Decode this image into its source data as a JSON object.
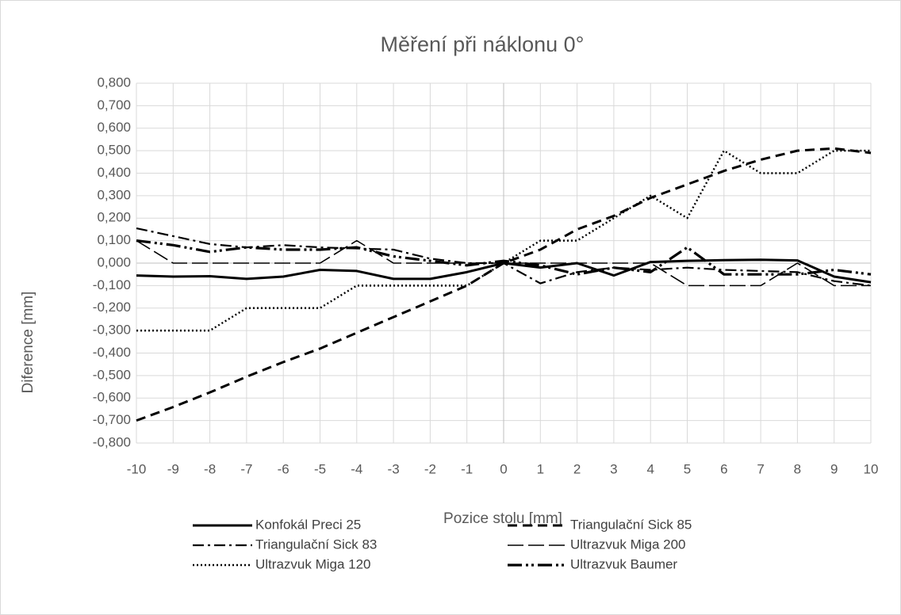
{
  "chart_data": {
    "type": "line",
    "title": "Měření při náklonu 0°",
    "x_label": "Pozice stolu [mm]",
    "y_label": "Diference [mm]",
    "x": [
      -10,
      -9,
      -8,
      -7,
      -6,
      -5,
      -4,
      -3,
      -2,
      -1,
      0,
      1,
      2,
      3,
      4,
      5,
      6,
      7,
      8,
      9,
      10
    ],
    "xlim": [
      -10,
      10
    ],
    "xticks": [
      -10,
      -9,
      -8,
      -7,
      -6,
      -5,
      -4,
      -3,
      -2,
      -1,
      0,
      1,
      2,
      3,
      4,
      5,
      6,
      7,
      8,
      9,
      10
    ],
    "ylim": [
      -0.8,
      0.8
    ],
    "yticks": [
      {
        "value": -0.8,
        "label": "-0,800"
      },
      {
        "value": -0.7,
        "label": "-0,700"
      },
      {
        "value": -0.6,
        "label": "-0,600"
      },
      {
        "value": -0.5,
        "label": "-0,500"
      },
      {
        "value": -0.4,
        "label": "-0,400"
      },
      {
        "value": -0.3,
        "label": "-0,300"
      },
      {
        "value": -0.2,
        "label": "-0,200"
      },
      {
        "value": -0.1,
        "label": "-0,100"
      },
      {
        "value": 0,
        "label": "0,000"
      },
      {
        "value": 0.1,
        "label": "0,100"
      },
      {
        "value": 0.2,
        "label": "0,200"
      },
      {
        "value": 0.3,
        "label": "0,300"
      },
      {
        "value": 0.4,
        "label": "0,400"
      },
      {
        "value": 0.5,
        "label": "0,500"
      },
      {
        "value": 0.6,
        "label": "0,600"
      },
      {
        "value": 0.7,
        "label": "0,700"
      },
      {
        "value": 0.8,
        "label": "0,800"
      }
    ],
    "grid": true,
    "legend": "bottom",
    "series": [
      {
        "name": "Konfokál  Preci 25",
        "color": "#000000",
        "values": [
          -0.055,
          -0.06,
          -0.058,
          -0.07,
          -0.06,
          -0.03,
          -0.035,
          -0.07,
          -0.07,
          -0.04,
          0,
          -0.02,
          0,
          -0.055,
          0.005,
          0.01,
          0.013,
          0.015,
          0.012,
          -0.06,
          -0.085
        ]
      },
      {
        "name": "Triangulační Sick 85",
        "color": "#000000",
        "values": [
          -0.7,
          -0.64,
          -0.575,
          -0.505,
          -0.44,
          -0.38,
          -0.31,
          -0.24,
          -0.17,
          -0.1,
          0,
          0.06,
          0.15,
          0.21,
          0.29,
          0.35,
          0.41,
          0.46,
          0.5,
          0.51,
          0.49
        ]
      },
      {
        "name": "Triangulační Sick 83",
        "color": "#000000",
        "values": [
          0.155,
          0.12,
          0.085,
          0.07,
          0.08,
          0.07,
          0.065,
          0.06,
          0.02,
          0,
          0,
          -0.09,
          -0.04,
          -0.02,
          -0.03,
          -0.02,
          -0.03,
          -0.035,
          -0.04,
          -0.08,
          -0.1
        ]
      },
      {
        "name": "Ultrazvuk Miga 200",
        "color": "#000000",
        "values": [
          0.1,
          0,
          0,
          0,
          0,
          0,
          0.1,
          0,
          0,
          0,
          0,
          0,
          0,
          0,
          0,
          -0.1,
          -0.1,
          -0.1,
          0,
          -0.1,
          -0.1
        ]
      },
      {
        "name": "Ultrazvuk Miga 120",
        "color": "#000000",
        "values": [
          -0.3,
          -0.3,
          -0.3,
          -0.2,
          -0.2,
          -0.2,
          -0.1,
          -0.1,
          -0.1,
          -0.1,
          0,
          0.1,
          0.1,
          0.2,
          0.3,
          0.2,
          0.5,
          0.4,
          0.4,
          0.5,
          0.5
        ]
      },
      {
        "name": "Ultrazvuk Baumer",
        "color": "#000000",
        "values": [
          0.1,
          0.08,
          0.05,
          0.07,
          0.06,
          0.06,
          0.07,
          0.03,
          0.01,
          -0.01,
          0.01,
          -0.01,
          -0.05,
          -0.02,
          -0.04,
          0.07,
          -0.05,
          -0.05,
          -0.05,
          -0.03,
          -0.05
        ]
      }
    ]
  }
}
